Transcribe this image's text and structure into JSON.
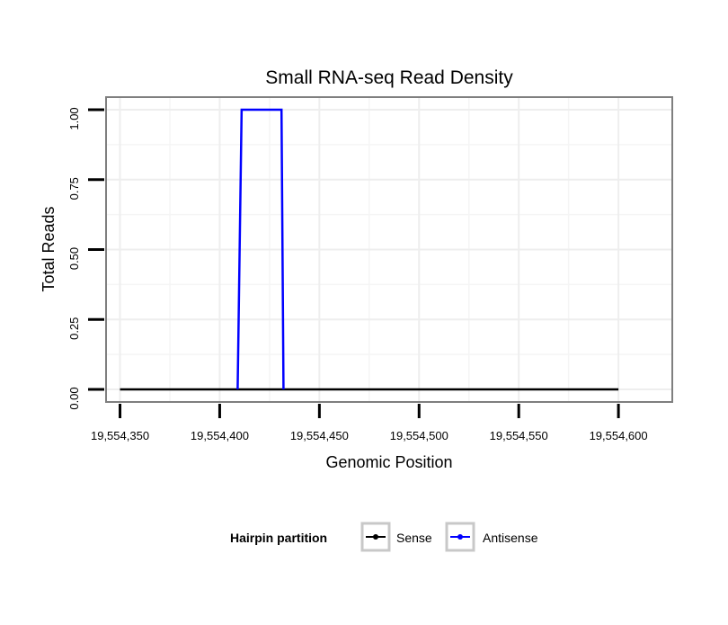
{
  "chart_data": {
    "type": "line",
    "title": "Small RNA-seq Read Density",
    "xlabel": "Genomic Position",
    "ylabel": "Total Reads",
    "xlim": [
      19554343,
      19554627
    ],
    "ylim": [
      -0.045,
      1.045
    ],
    "x_ticks": [
      19554350,
      19554400,
      19554450,
      19554500,
      19554550,
      19554600
    ],
    "x_tick_labels": [
      "19,554,350",
      "19,554,400",
      "19,554,450",
      "19,554,500",
      "19,554,550",
      "19,554,600"
    ],
    "y_ticks": [
      0,
      0.25,
      0.5,
      0.75,
      1.0
    ],
    "y_tick_labels": [
      "0.00",
      "0.25",
      "0.50",
      "0.75",
      "1.00"
    ],
    "grid": true,
    "legend": {
      "title": "Hairpin partition",
      "position": "bottom",
      "entries": [
        "Sense",
        "Antisense"
      ]
    },
    "series": [
      {
        "name": "Sense",
        "color": "#000000",
        "x": [
          19554350,
          19554600
        ],
        "y": [
          0,
          0
        ]
      },
      {
        "name": "Antisense",
        "color": "#0000ff",
        "x": [
          19554409,
          19554411,
          19554431,
          19554432
        ],
        "y": [
          0,
          1,
          1,
          0
        ]
      }
    ]
  }
}
